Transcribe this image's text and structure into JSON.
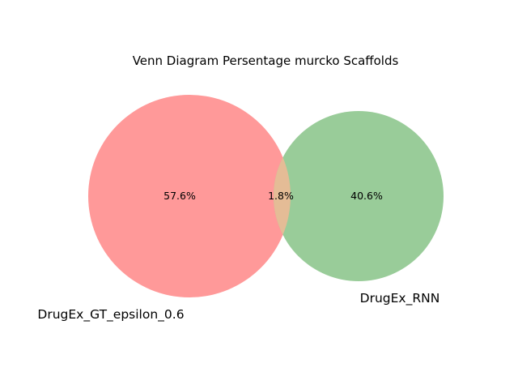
{
  "chart_data": {
    "type": "venn",
    "title": "Venn Diagram Persentage murcko Scaffolds",
    "sets": [
      {
        "name": "DrugEx_GT_epsilon_0.6",
        "color": "#ff9999"
      },
      {
        "name": "DrugEx_RNN",
        "color": "#99cc99"
      }
    ],
    "regions": {
      "only_a": {
        "label": "57.6%",
        "value": 57.6
      },
      "overlap": {
        "label": "1.8%",
        "value": 1.8
      },
      "only_b": {
        "label": "40.6%",
        "value": 40.6
      }
    },
    "overlap_color": "#e4bc96"
  }
}
